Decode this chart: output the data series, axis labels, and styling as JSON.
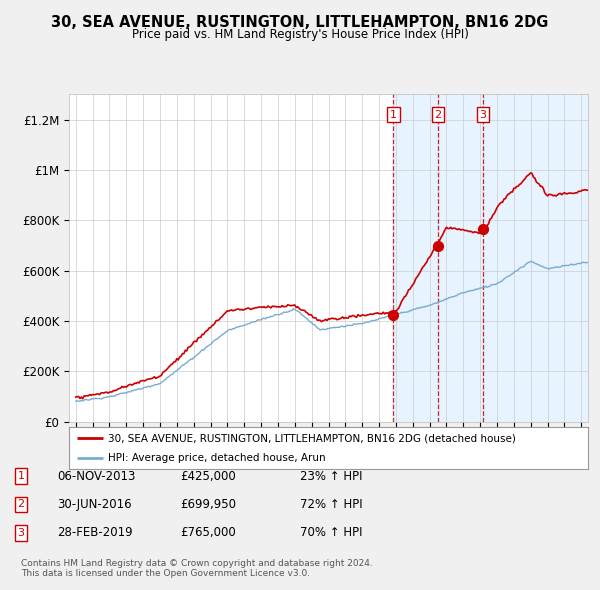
{
  "title": "30, SEA AVENUE, RUSTINGTON, LITTLEHAMPTON, BN16 2DG",
  "subtitle": "Price paid vs. HM Land Registry's House Price Index (HPI)",
  "legend_label_red": "30, SEA AVENUE, RUSTINGTON, LITTLEHAMPTON, BN16 2DG (detached house)",
  "legend_label_blue": "HPI: Average price, detached house, Arun",
  "transactions": [
    {
      "num": 1,
      "date": "06-NOV-2013",
      "price": "£425,000",
      "hpi_pct": "23% ↑ HPI",
      "x_year": 2013.85,
      "y_val": 425000
    },
    {
      "num": 2,
      "date": "30-JUN-2016",
      "price": "£699,950",
      "hpi_pct": "72% ↑ HPI",
      "x_year": 2016.5,
      "y_val": 699950
    },
    {
      "num": 3,
      "date": "28-FEB-2019",
      "price": "£765,000",
      "hpi_pct": "70% ↑ HPI",
      "x_year": 2019.17,
      "y_val": 765000
    }
  ],
  "footnote1": "Contains HM Land Registry data © Crown copyright and database right 2024.",
  "footnote2": "This data is licensed under the Open Government Licence v3.0.",
  "ylim": [
    0,
    1300000
  ],
  "yticks": [
    0,
    200000,
    400000,
    600000,
    800000,
    1000000,
    1200000
  ],
  "ytick_labels": [
    "£0",
    "£200K",
    "£400K",
    "£600K",
    "£800K",
    "£1M",
    "£1.2M"
  ],
  "xmin": 1994.6,
  "xmax": 2025.4,
  "background_color": "#f0f0f0",
  "plot_bg_color": "#ffffff",
  "red_color": "#cc0000",
  "blue_color": "#7aaccf",
  "shade_color": "#ddeeff",
  "grid_color": "#cccccc"
}
